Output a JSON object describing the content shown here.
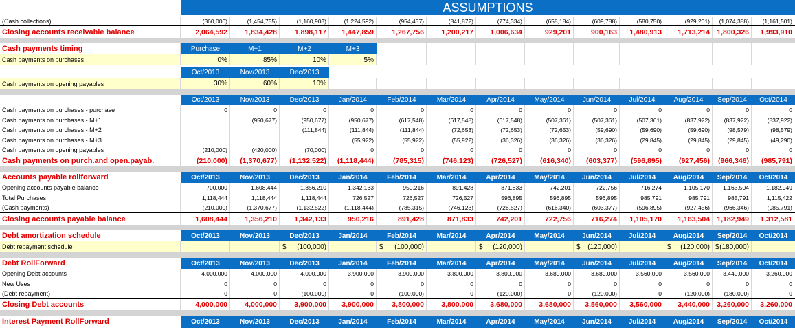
{
  "title": "ASSUMPTIONS",
  "months": [
    "Oct/2013",
    "Nov/2013",
    "Dec/2013",
    "Jan/2014",
    "Feb/2014",
    "Mar/2014",
    "Apr/2014",
    "May/2014",
    "Jun/2014",
    "Jul/2014",
    "Aug/2014",
    "Sep/2014",
    "Oct/2014"
  ],
  "cash_collections": {
    "label": "(Cash collections)",
    "values": [
      "(360,000)",
      "(1,454,755)",
      "(1,160,903)",
      "(1,224,592)",
      "(954,437)",
      "(841,872)",
      "(774,334)",
      "(658,184)",
      "(609,788)",
      "(580,750)",
      "(929,201)",
      "(1,074,388)",
      "(1,161,501)"
    ]
  },
  "closing_ar": {
    "label": "Closing accounts receivable balance",
    "values": [
      "2,064,592",
      "1,834,428",
      "1,898,117",
      "1,447,859",
      "1,267,756",
      "1,200,217",
      "1,006,634",
      "929,201",
      "900,163",
      "1,480,913",
      "1,713,214",
      "1,800,326",
      "1,993,910"
    ]
  },
  "cash_timing": {
    "label": "Cash payments timing",
    "headers": [
      "Purchase",
      "M+1",
      "M+2",
      "M+3"
    ],
    "purchases_label": "Cash payments on purchases",
    "purchases_values": [
      "0%",
      "85%",
      "10%",
      "5%"
    ],
    "opening_headers": [
      "Oct/2013",
      "Nov/2013",
      "Dec/2013"
    ],
    "opening_label": "Cash payments on opening payables",
    "opening_values": [
      "30%",
      "60%",
      "10%"
    ]
  },
  "payments_detail": {
    "rows": [
      {
        "label": "Cash payments on purchases - purchase",
        "values": [
          "0",
          "0",
          "0",
          "0",
          "0",
          "0",
          "0",
          "0",
          "0",
          "0",
          "0",
          "0",
          "0"
        ]
      },
      {
        "label": "Cash payments on purchases - M+1",
        "values": [
          "",
          "(950,677)",
          "(950,677)",
          "(950,677)",
          "(617,548)",
          "(617,548)",
          "(617,548)",
          "(507,361)",
          "(507,361)",
          "(507,361)",
          "(837,922)",
          "(837,922)",
          "(837,922)"
        ]
      },
      {
        "label": "Cash payments on purchases - M+2",
        "values": [
          "",
          "",
          "(111,844)",
          "(111,844)",
          "(111,844)",
          "(72,653)",
          "(72,653)",
          "(72,653)",
          "(59,690)",
          "(59,690)",
          "(59,690)",
          "(98,579)",
          "(98,579)"
        ]
      },
      {
        "label": "Cash payments on purchases - M+3",
        "values": [
          "",
          "",
          "",
          "(55,922)",
          "(55,922)",
          "(55,922)",
          "(36,326)",
          "(36,326)",
          "(36,326)",
          "(29,845)",
          "(29,845)",
          "(29,845)",
          "(49,290)"
        ]
      },
      {
        "label": "Cash payments on opening payables",
        "values": [
          "(210,000)",
          "(420,000)",
          "(70,000)",
          "0",
          "0",
          "0",
          "0",
          "0",
          "0",
          "0",
          "0",
          "0",
          "0"
        ]
      }
    ],
    "total_label": "Cash payments on purch.and open.payab.",
    "total_values": [
      "(210,000)",
      "(1,370,677)",
      "(1,132,522)",
      "(1,118,444)",
      "(785,315)",
      "(746,123)",
      "(726,527)",
      "(616,340)",
      "(603,377)",
      "(596,895)",
      "(927,456)",
      "(966,346)",
      "(985,791)"
    ]
  },
  "ap_rollforward": {
    "label": "Accounts payable rollforward",
    "rows": [
      {
        "label": "Opening accounts payable balance",
        "values": [
          "700,000",
          "1,608,444",
          "1,356,210",
          "1,342,133",
          "950,216",
          "891,428",
          "871,833",
          "742,201",
          "722,756",
          "716,274",
          "1,105,170",
          "1,163,504",
          "1,182,949"
        ]
      },
      {
        "label": "Total Purchases",
        "values": [
          "1,118,444",
          "1,118,444",
          "1,118,444",
          "726,527",
          "726,527",
          "726,527",
          "596,895",
          "596,895",
          "596,895",
          "985,791",
          "985,791",
          "985,791",
          "1,115,422"
        ]
      },
      {
        "label": "(Cash payments)",
        "values": [
          "(210,000)",
          "(1,370,677)",
          "(1,132,522)",
          "(1,118,444)",
          "(785,315)",
          "(746,123)",
          "(726,527)",
          "(616,340)",
          "(603,377)",
          "(596,895)",
          "(927,456)",
          "(966,346)",
          "(985,791)"
        ]
      }
    ],
    "total_label": "Closing accounts payable balance",
    "total_values": [
      "1,608,444",
      "1,356,210",
      "1,342,133",
      "950,216",
      "891,428",
      "871,833",
      "742,201",
      "722,756",
      "716,274",
      "1,105,170",
      "1,163,504",
      "1,182,949",
      "1,312,581"
    ]
  },
  "debt_amort": {
    "label": "Debt amortization schedule",
    "row_label": "Debt repayment schedule",
    "values": [
      "",
      "",
      "$ (100,000)",
      "",
      "$ (100,000)",
      "",
      "$ (120,000)",
      "",
      "$ (120,000)",
      "",
      "$ (120,000)",
      "$ (180,000)",
      ""
    ]
  },
  "debt_rollforward": {
    "label": "Debt RollForward",
    "rows": [
      {
        "label": "Opening Debt accounts",
        "values": [
          "4,000,000",
          "4,000,000",
          "4,000,000",
          "3,900,000",
          "3,900,000",
          "3,800,000",
          "3,800,000",
          "3,680,000",
          "3,680,000",
          "3,560,000",
          "3,560,000",
          "3,440,000",
          "3,260,000"
        ]
      },
      {
        "label": "New Uses",
        "values": [
          "0",
          "0",
          "0",
          "0",
          "0",
          "0",
          "0",
          "0",
          "0",
          "0",
          "0",
          "0",
          "0"
        ]
      },
      {
        "label": "(Debt repayment)",
        "values": [
          "0",
          "0",
          "(100,000)",
          "0",
          "(100,000)",
          "0",
          "(120,000)",
          "0",
          "(120,000)",
          "0",
          "(120,000)",
          "(180,000)",
          "0"
        ]
      }
    ],
    "total_label": "Closing Debt accounts",
    "total_values": [
      "4,000,000",
      "4,000,000",
      "3,900,000",
      "3,900,000",
      "3,800,000",
      "3,800,000",
      "3,680,000",
      "3,680,000",
      "3,560,000",
      "3,560,000",
      "3,440,000",
      "3,260,000",
      "3,260,000"
    ]
  },
  "interest": {
    "label": "Interest Payment RollForward"
  },
  "colors": {
    "header_blue": "#0B6FC6",
    "label_yellow": "#FFFFCC",
    "separator_gray": "#D4D4D4",
    "total_red": "#E00000"
  }
}
